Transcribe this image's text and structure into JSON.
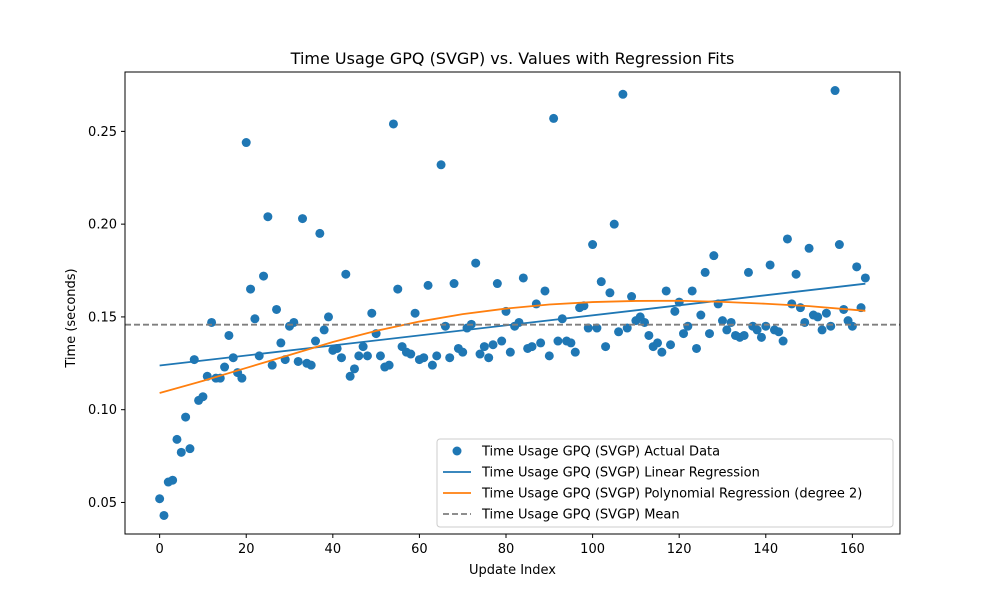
{
  "chart_data": {
    "type": "scatter",
    "title": "Time Usage GPQ (SVGP) vs. Values with Regression Fits",
    "xlabel": "Update Index",
    "ylabel": "Time (seconds)",
    "xlim": [
      -8,
      171
    ],
    "ylim": [
      0.033,
      0.282
    ],
    "xticks": [
      0,
      20,
      40,
      60,
      80,
      100,
      120,
      140,
      160
    ],
    "yticks": [
      0.05,
      0.1,
      0.15,
      0.2,
      0.25
    ],
    "ytick_labels": [
      "0.05",
      "0.10",
      "0.15",
      "0.20",
      "0.25"
    ],
    "grid": false,
    "legend_position": "lower-right",
    "series": [
      {
        "name": "Time Usage GPQ (SVGP) Actual Data",
        "kind": "scatter",
        "color": "#1f77b4",
        "x": [
          0,
          1,
          2,
          3,
          4,
          5,
          6,
          7,
          8,
          9,
          10,
          11,
          12,
          13,
          14,
          15,
          16,
          17,
          18,
          19,
          20,
          21,
          22,
          23,
          24,
          25,
          26,
          27,
          28,
          29,
          30,
          31,
          32,
          33,
          34,
          35,
          36,
          37,
          38,
          39,
          40,
          41,
          42,
          43,
          44,
          45,
          46,
          47,
          48,
          49,
          50,
          51,
          52,
          53,
          54,
          55,
          56,
          57,
          58,
          59,
          60,
          61,
          62,
          63,
          64,
          65,
          66,
          67,
          68,
          69,
          70,
          71,
          72,
          73,
          74,
          75,
          76,
          77,
          78,
          79,
          80,
          81,
          82,
          83,
          84,
          85,
          86,
          87,
          88,
          89,
          90,
          91,
          92,
          93,
          94,
          95,
          96,
          97,
          98,
          99,
          100,
          101,
          102,
          103,
          104,
          105,
          106,
          107,
          108,
          109,
          110,
          111,
          112,
          113,
          114,
          115,
          116,
          117,
          118,
          119,
          120,
          121,
          122,
          123,
          124,
          125,
          126,
          127,
          128,
          129,
          130,
          131,
          132,
          133,
          134,
          135,
          136,
          137,
          138,
          139,
          140,
          141,
          142,
          143,
          144,
          145,
          146,
          147,
          148,
          149,
          150,
          151,
          152,
          153,
          154,
          155,
          156,
          157,
          158,
          159,
          160,
          161,
          162,
          163
        ],
        "y": [
          0.052,
          0.043,
          0.061,
          0.062,
          0.084,
          0.077,
          0.096,
          0.079,
          0.127,
          0.105,
          0.107,
          0.118,
          0.147,
          0.117,
          0.117,
          0.123,
          0.14,
          0.128,
          0.12,
          0.117,
          0.244,
          0.165,
          0.149,
          0.129,
          0.172,
          0.204,
          0.124,
          0.154,
          0.136,
          0.127,
          0.145,
          0.147,
          0.126,
          0.203,
          0.125,
          0.124,
          0.137,
          0.195,
          0.143,
          0.15,
          0.132,
          0.133,
          0.128,
          0.173,
          0.118,
          0.122,
          0.129,
          0.134,
          0.129,
          0.152,
          0.141,
          0.129,
          0.123,
          0.124,
          0.254,
          0.165,
          0.134,
          0.131,
          0.13,
          0.152,
          0.127,
          0.128,
          0.167,
          0.124,
          0.129,
          0.232,
          0.145,
          0.128,
          0.168,
          0.133,
          0.131,
          0.144,
          0.146,
          0.179,
          0.13,
          0.134,
          0.128,
          0.135,
          0.168,
          0.137,
          0.153,
          0.131,
          0.145,
          0.147,
          0.171,
          0.133,
          0.134,
          0.157,
          0.136,
          0.164,
          0.129,
          0.257,
          0.137,
          0.149,
          0.137,
          0.136,
          0.131,
          0.155,
          0.156,
          0.144,
          0.189,
          0.144,
          0.169,
          0.134,
          0.163,
          0.2,
          0.142,
          0.27,
          0.144,
          0.161,
          0.148,
          0.15,
          0.147,
          0.14,
          0.134,
          0.136,
          0.131,
          0.164,
          0.135,
          0.153,
          0.158,
          0.141,
          0.145,
          0.164,
          0.133,
          0.151,
          0.174,
          0.141,
          0.183,
          0.157,
          0.148,
          0.143,
          0.147,
          0.14,
          0.139,
          0.14,
          0.174,
          0.145,
          0.143,
          0.139,
          0.145,
          0.178,
          0.143,
          0.142,
          0.137,
          0.192,
          0.157,
          0.173,
          0.155,
          0.147,
          0.187,
          0.151,
          0.15,
          0.143,
          0.152,
          0.145,
          0.272,
          0.189,
          0.154,
          0.148,
          0.145,
          0.177,
          0.155,
          0.171
        ]
      },
      {
        "name": "Time Usage GPQ (SVGP) Linear Regression",
        "kind": "line",
        "color": "#1f77b4",
        "x": [
          0,
          163
        ],
        "y": [
          0.1238,
          0.1679
        ]
      },
      {
        "name": "Time Usage GPQ (SVGP) Polynomial Regression (degree 2)",
        "kind": "line",
        "color": "#ff7f0e",
        "x": [
          0,
          10,
          20,
          30,
          40,
          50,
          60,
          70,
          80,
          90,
          100,
          110,
          120,
          130,
          140,
          150,
          163
        ],
        "y": [
          0.109,
          0.1155,
          0.1225,
          0.1295,
          0.1365,
          0.1425,
          0.1475,
          0.1515,
          0.1545,
          0.1567,
          0.158,
          0.1586,
          0.1587,
          0.1581,
          0.1571,
          0.1558,
          0.1533
        ]
      },
      {
        "name": "Time Usage GPQ (SVGP) Mean",
        "kind": "hline",
        "color": "#7f7f7f",
        "dash": true,
        "y": 0.1458
      }
    ]
  }
}
